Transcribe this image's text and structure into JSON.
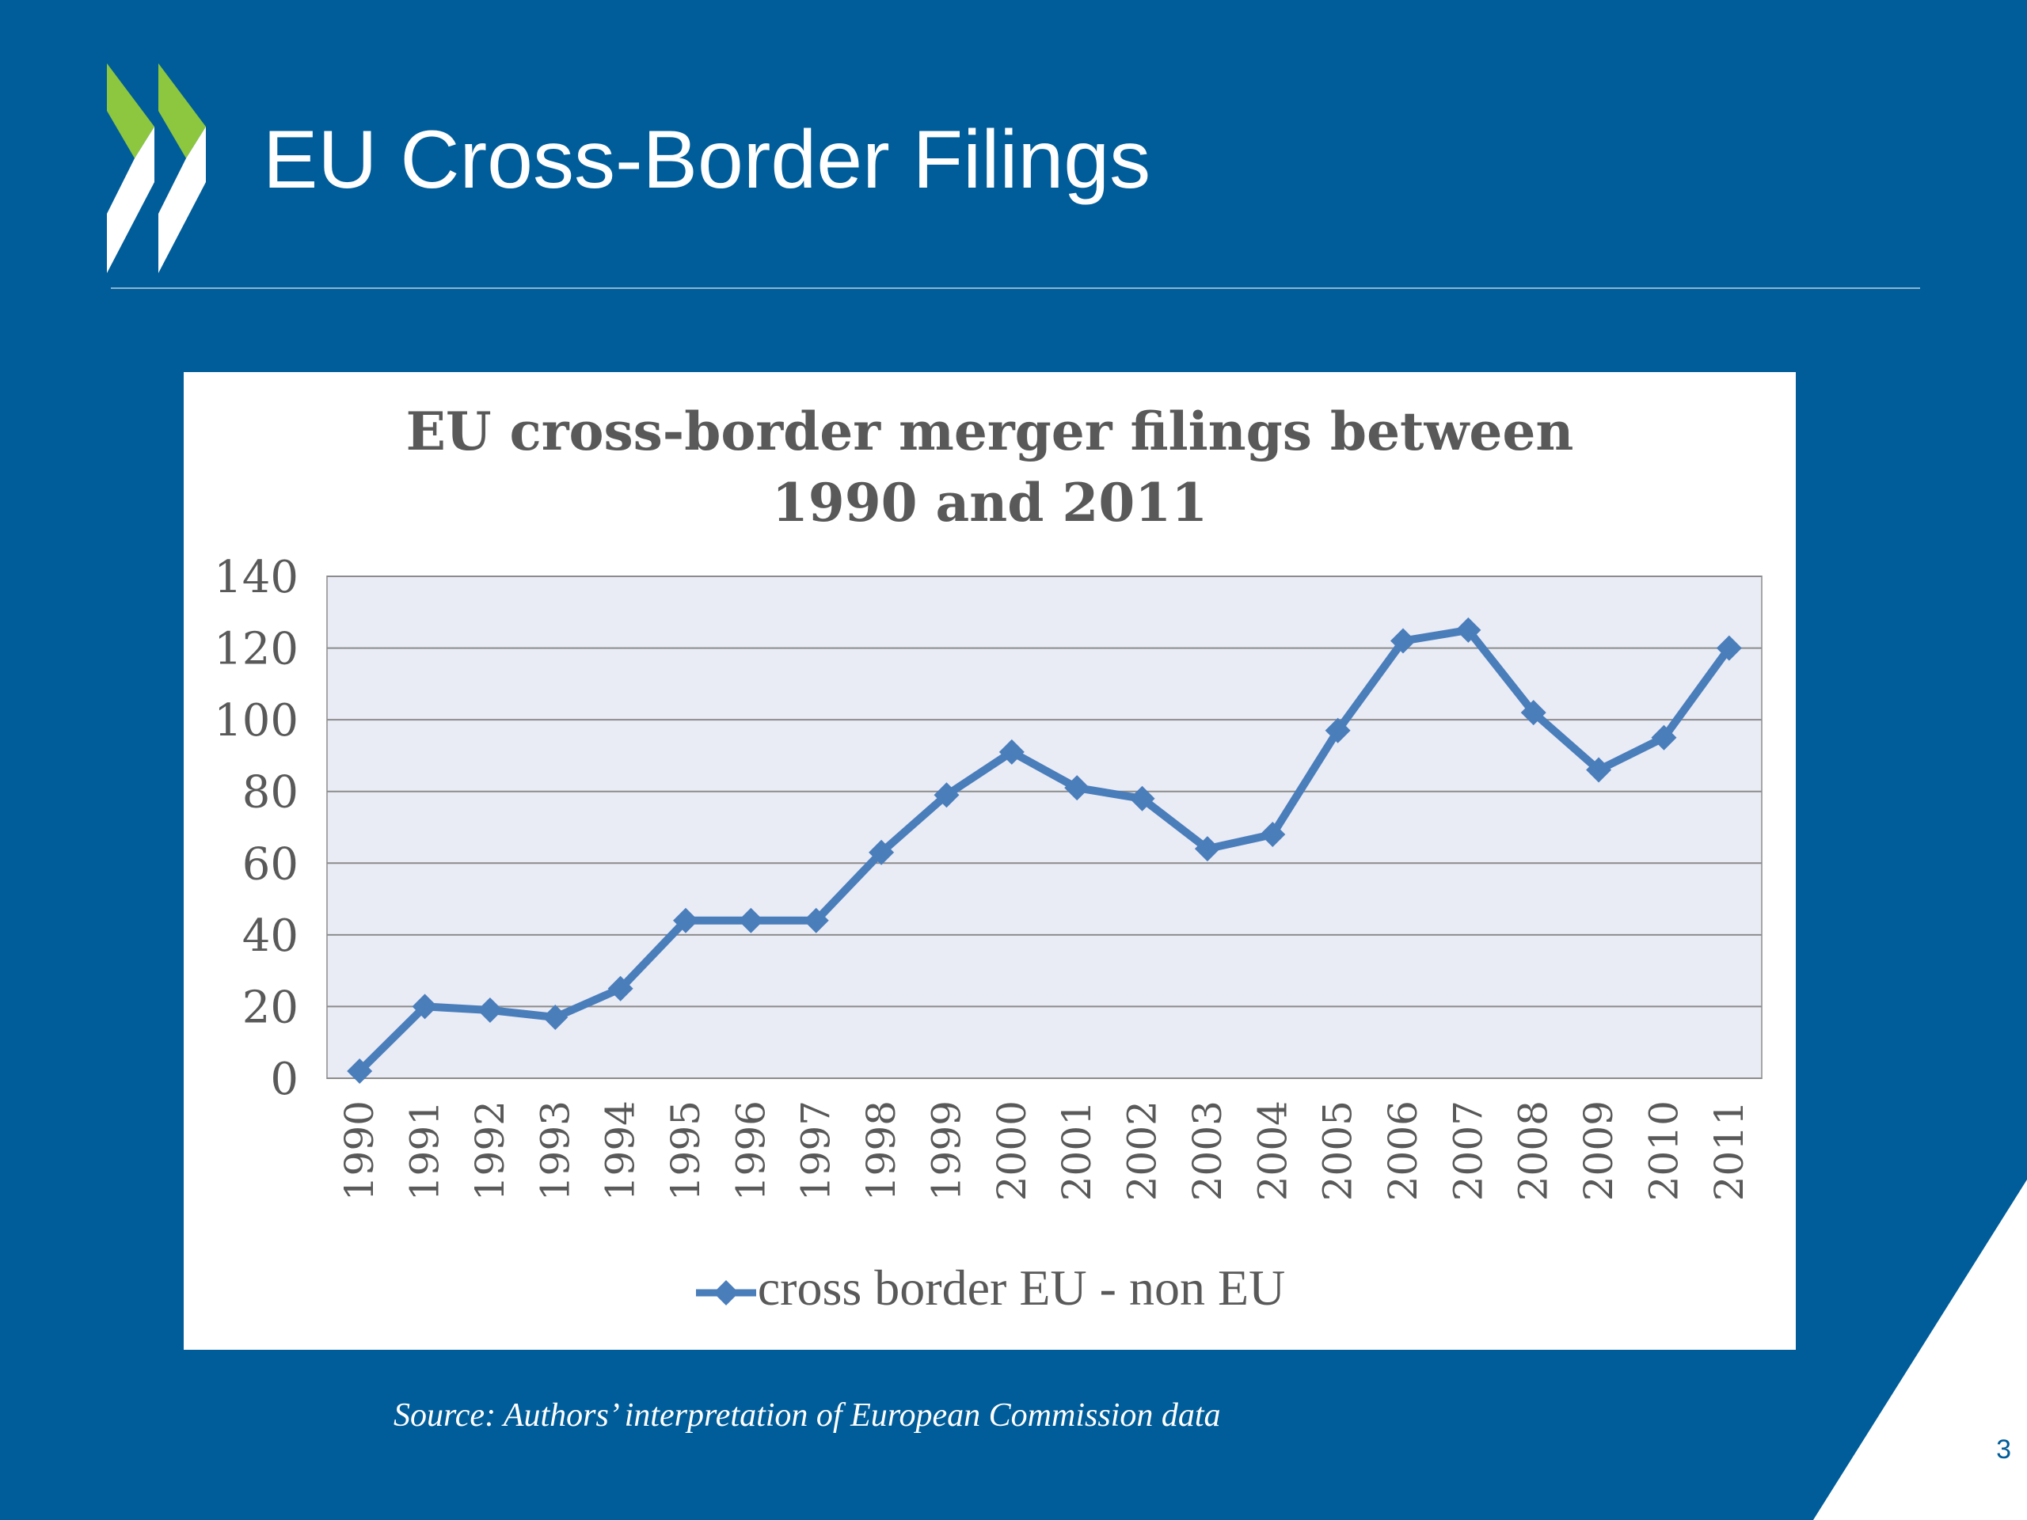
{
  "slide": {
    "title": "EU Cross-Border Filings",
    "source_note": "Source: Authors’ interpretation of European Commission data",
    "page_number": "3",
    "colors": {
      "background": "#005d99",
      "logo_green": "#8dc63f",
      "logo_white": "#ffffff",
      "line": "#4a7ebb"
    },
    "logo_icon": "oecd-chevrons-icon"
  },
  "chart_data": {
    "type": "line",
    "title": [
      "EU cross-border merger filings between",
      "1990 and 2011"
    ],
    "categories": [
      "1990",
      "1991",
      "1992",
      "1993",
      "1994",
      "1995",
      "1996",
      "1997",
      "1998",
      "1999",
      "2000",
      "2001",
      "2002",
      "2003",
      "2004",
      "2005",
      "2006",
      "2007",
      "2008",
      "2009",
      "2010",
      "2011"
    ],
    "series": [
      {
        "name": "cross border EU - non EU",
        "values": [
          2,
          20,
          19,
          17,
          25,
          44,
          44,
          44,
          63,
          79,
          91,
          81,
          78,
          64,
          68,
          97,
          122,
          125,
          102,
          86,
          95,
          120
        ],
        "color": "#4a7ebb",
        "marker": "diamond"
      }
    ],
    "ylim": [
      0,
      140
    ],
    "yticks": [
      0,
      20,
      40,
      60,
      80,
      100,
      120,
      140
    ],
    "grid": true,
    "legend": "bottom"
  }
}
